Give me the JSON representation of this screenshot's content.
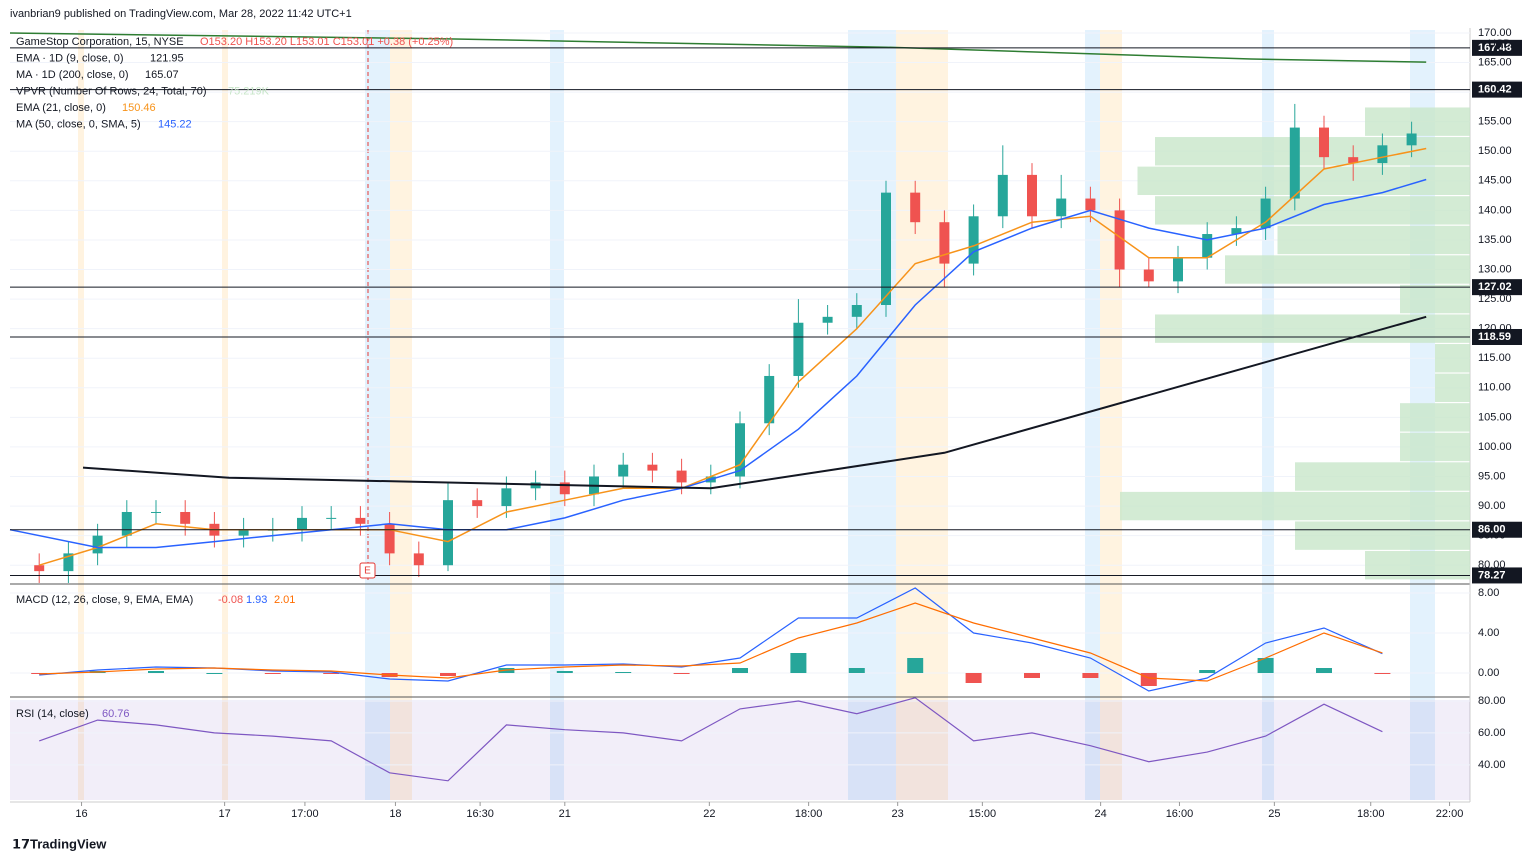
{
  "header": "ivanbrian9 published on TradingView.com, Mar 28, 2022 11:42 UTC+1",
  "footer_brand": "TradingView",
  "chart_data": [
    {
      "type": "candlestick",
      "symbol": "GameStop Corporation, 15, NYSE",
      "ohlc_label": "O153.20 H153.20 L153.01 C153.01 +0.38 (+0.25%)",
      "indicator_legend": [
        {
          "name": "EMA · 1D (9, close, 0)",
          "value_label": "121.95"
        },
        {
          "name": "MA · 1D (200, close, 0)",
          "value_label": "165.07"
        },
        {
          "name": "VPVR (Number Of Rows, 24, Total, 70)",
          "value_label": "75.219K"
        }
      ],
      "currency": "USD",
      "earnings_marker": "E",
      "up_color": "#26a69a",
      "down_color": "#ef5350",
      "xlim": [
        0,
        100
      ],
      "xticks": [
        {
          "value": 4.9,
          "label": "16"
        },
        {
          "value": 14.7,
          "label": "17"
        },
        {
          "value": 20.2,
          "label": "17:00"
        },
        {
          "value": 26.4,
          "label": "18"
        },
        {
          "value": 32.2,
          "label": "16:30"
        },
        {
          "value": 38,
          "label": "21"
        },
        {
          "value": 47.9,
          "label": "22"
        },
        {
          "value": 54.7,
          "label": "18:00"
        },
        {
          "value": 60.8,
          "label": "23"
        },
        {
          "value": 66.6,
          "label": "15:00"
        },
        {
          "value": 74.7,
          "label": "24"
        },
        {
          "value": 80.1,
          "label": "16:00"
        },
        {
          "value": 86.6,
          "label": "25"
        },
        {
          "value": 93.2,
          "label": "18:00"
        },
        {
          "value": 98.6,
          "label": "22:00"
        }
      ],
      "ylim": [
        77.5,
        170.5
      ],
      "yticks": [
        {
          "value": 80,
          "label": "80.00"
        },
        {
          "value": 85,
          "label": "85.00"
        },
        {
          "value": 90,
          "label": "90.00"
        },
        {
          "value": 95,
          "label": "95.00"
        },
        {
          "value": 100,
          "label": "100.00"
        },
        {
          "value": 105,
          "label": "105.00"
        },
        {
          "value": 110,
          "label": "110.00"
        },
        {
          "value": 115,
          "label": "115.00"
        },
        {
          "value": 120,
          "label": "120.00"
        },
        {
          "value": 125,
          "label": "125.00"
        },
        {
          "value": 130,
          "label": "130.00"
        },
        {
          "value": 135,
          "label": "135.00"
        },
        {
          "value": 140,
          "label": "140.00"
        },
        {
          "value": 145,
          "label": "145.00"
        },
        {
          "value": 150,
          "label": "150.00"
        },
        {
          "value": 155,
          "label": "155.00"
        },
        {
          "value": 160,
          "label": "160.00"
        },
        {
          "value": 165,
          "label": "165.00"
        },
        {
          "value": 170,
          "label": "170.00"
        }
      ],
      "levels": [
        167.48,
        160.42,
        127.02,
        118.59,
        {
          "value": 86,
          "label": "86.00"
        },
        78.27
      ],
      "x": [
        2,
        4,
        6,
        8,
        10,
        12,
        14,
        16,
        18,
        20,
        22,
        24,
        26,
        28,
        30,
        32,
        34,
        36,
        38,
        40,
        42,
        44,
        46,
        48,
        50,
        52,
        54,
        56,
        58,
        60,
        62,
        64,
        66,
        68,
        70,
        72,
        74,
        76,
        78,
        80,
        82,
        84,
        86,
        88,
        90,
        92,
        94,
        96
      ],
      "open": [
        80,
        79,
        82,
        85,
        89,
        89,
        87,
        85,
        86,
        86,
        88,
        88,
        87,
        82,
        80,
        91,
        90,
        93,
        94,
        92,
        95,
        97,
        96,
        94,
        95,
        104,
        112,
        121,
        122,
        124,
        143,
        138,
        131,
        139,
        146,
        139,
        142,
        140,
        130,
        128,
        132,
        136,
        137,
        142,
        154,
        149,
        148,
        151
      ],
      "high": [
        82,
        84,
        87,
        91,
        91,
        91,
        89,
        88,
        88,
        90,
        90,
        90,
        89,
        84,
        94,
        93,
        95,
        96,
        96,
        97,
        99,
        99,
        98,
        97,
        106,
        114,
        125,
        124,
        126,
        145,
        145,
        140,
        141,
        151,
        148,
        146,
        144,
        142,
        132,
        134,
        138,
        139,
        144,
        158,
        156,
        151,
        153,
        155
      ],
      "low": [
        77,
        77,
        80,
        83,
        87,
        85,
        83,
        83,
        84,
        84,
        86,
        85,
        80,
        78,
        79,
        88,
        88,
        91,
        90,
        90,
        93,
        94,
        92,
        92,
        93,
        102,
        110,
        119,
        120,
        122,
        136,
        127,
        129,
        137,
        137,
        137,
        138,
        127,
        127,
        126,
        130,
        134,
        135,
        140,
        147,
        145,
        146,
        149
      ],
      "close": [
        79,
        82,
        85,
        89,
        89,
        87,
        85,
        86,
        86,
        88,
        88,
        87,
        82,
        80,
        91,
        90,
        93,
        94,
        92,
        95,
        97,
        96,
        94,
        95,
        104,
        112,
        121,
        122,
        124,
        143,
        138,
        131,
        139,
        146,
        139,
        142,
        140,
        130,
        128,
        132,
        136,
        137,
        142,
        154,
        149,
        148,
        151,
        153
      ],
      "series": [
        {
          "name": "EMA (21, close, 0)",
          "value_label": "150.46",
          "color": "#f7931a",
          "x": [
            2,
            6,
            10,
            14,
            18,
            22,
            26,
            30,
            34,
            38,
            42,
            46,
            50,
            54,
            58,
            62,
            66,
            70,
            74,
            78,
            82,
            86,
            90,
            94,
            97
          ],
          "values": [
            80,
            83,
            87,
            86,
            86,
            86,
            86,
            84,
            89,
            91,
            93,
            93,
            97,
            111,
            120,
            131,
            134,
            138,
            139,
            132,
            132,
            138,
            147,
            149,
            150.46
          ]
        },
        {
          "name": "MA (50, close, 0, SMA, 5)",
          "value_label": "145.22",
          "color": "#2962ff",
          "x": [
            0,
            6,
            10,
            14,
            18,
            22,
            26,
            30,
            34,
            38,
            42,
            46,
            50,
            54,
            58,
            62,
            66,
            70,
            74,
            78,
            82,
            86,
            90,
            94,
            97
          ],
          "values": [
            86,
            83,
            83,
            84,
            85,
            86,
            87,
            86,
            86,
            88,
            91,
            93,
            96,
            103,
            112,
            124,
            133,
            137,
            140,
            137,
            135,
            137,
            141,
            143,
            145.22
          ]
        },
        {
          "name": "MA 1D 200",
          "color": "#2e7d32",
          "x": [
            0,
            30,
            60,
            85,
            97
          ],
          "values": [
            170,
            169,
            167.6,
            165.6,
            165.07
          ]
        },
        {
          "name": "Trend line",
          "color": "#131722",
          "x": [
            5,
            15,
            48,
            64,
            97
          ],
          "values": [
            96.5,
            94.8,
            93,
            99,
            122
          ]
        }
      ],
      "vpvr": {
        "color": "#c8e6c9",
        "prices": [
          155,
          150,
          145,
          140,
          135,
          130,
          125,
          120,
          115,
          110,
          105,
          100,
          95,
          90,
          85,
          80
        ],
        "volumes": [
          0.3,
          0.9,
          0.95,
          0.9,
          0.55,
          0.7,
          0.2,
          0.9,
          0.1,
          0.1,
          0.2,
          0.2,
          0.5,
          1.0,
          0.5,
          0.3
        ]
      }
    },
    {
      "type": "macd",
      "title": "MACD (12, 26, close, 9, EMA, EMA)",
      "value_labels": [
        "-0.08",
        "1.93",
        "2.01"
      ],
      "ylim": [
        -2.2,
        8.5
      ],
      "yticks": [
        {
          "value": 0,
          "label": "0.00"
        },
        {
          "value": 4,
          "label": "4.00"
        },
        {
          "value": 8,
          "label": "8.00"
        }
      ],
      "x": [
        2,
        6,
        10,
        14,
        18,
        22,
        26,
        30,
        34,
        38,
        42,
        46,
        50,
        54,
        58,
        62,
        66,
        70,
        74,
        78,
        82,
        86,
        90,
        94
      ],
      "histogram": [
        -0.1,
        0.2,
        0.2,
        0.0,
        -0.1,
        -0.1,
        -0.4,
        -0.3,
        0.5,
        0.2,
        0.1,
        -0.1,
        0.5,
        2.0,
        0.5,
        1.5,
        -1.0,
        -0.5,
        -0.5,
        -1.3,
        0.3,
        1.5,
        0.5,
        -0.08
      ],
      "macd": [
        -0.2,
        0.3,
        0.6,
        0.5,
        0.2,
        0.1,
        -0.6,
        -0.8,
        0.8,
        0.8,
        0.9,
        0.6,
        1.5,
        5.5,
        5.5,
        8.5,
        4.0,
        3.0,
        1.5,
        -1.8,
        -0.5,
        3.0,
        4.5,
        1.93
      ],
      "signal": [
        -0.1,
        0.1,
        0.4,
        0.5,
        0.3,
        0.2,
        -0.2,
        -0.5,
        0.3,
        0.6,
        0.8,
        0.7,
        1.0,
        3.5,
        5.0,
        7.0,
        5.0,
        3.5,
        2.0,
        -0.5,
        -0.8,
        1.5,
        4.0,
        2.01
      ],
      "colors": {
        "histogram_up": "#26a69a",
        "histogram_down": "#ef5350",
        "macd": "#2962ff",
        "signal": "#ff6d00"
      }
    },
    {
      "type": "rsi",
      "title": "RSI (14, close)",
      "value_label": "60.76",
      "color": "#7e57c2",
      "ylim": [
        18,
        80.6
      ],
      "yticks": [
        {
          "value": 40,
          "label": "40.00"
        },
        {
          "value": 60,
          "label": "60.00"
        },
        {
          "value": 80,
          "label": "80.00"
        }
      ],
      "x": [
        2,
        6,
        10,
        14,
        18,
        22,
        26,
        30,
        34,
        38,
        42,
        46,
        50,
        54,
        58,
        62,
        66,
        70,
        74,
        78,
        82,
        86,
        90,
        94
      ],
      "values": [
        55,
        68,
        65,
        60,
        58,
        55,
        35,
        30,
        65,
        62,
        60,
        55,
        75,
        80,
        72,
        82,
        55,
        60,
        52,
        42,
        48,
        58,
        78,
        60.76
      ]
    }
  ]
}
